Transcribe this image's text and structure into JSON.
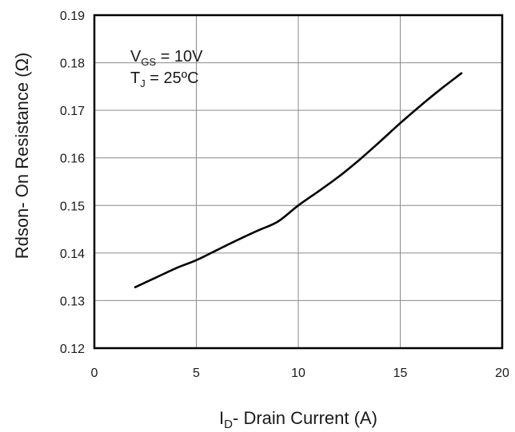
{
  "chart_data": {
    "type": "line",
    "xlabel_main": "I",
    "xlabel_sub": "D",
    "xlabel_rest": "- Drain Current (A)",
    "ylabel": "Rdson- On Resistance (Ω)",
    "xlim": [
      0,
      20
    ],
    "ylim": [
      0.12,
      0.19
    ],
    "x_ticks": [
      0,
      5,
      10,
      15,
      20
    ],
    "x_tick_labels": [
      "0",
      "5",
      "10",
      "15",
      "20"
    ],
    "y_ticks": [
      0.12,
      0.13,
      0.14,
      0.15,
      0.16,
      0.17,
      0.18,
      0.19
    ],
    "y_tick_labels": [
      "0.12",
      "0.13",
      "0.14",
      "0.15",
      "0.16",
      "0.17",
      "0.18",
      "0.19"
    ],
    "grid": true,
    "series": [
      {
        "x": [
          2,
          3,
          4,
          5,
          6,
          7,
          8,
          9,
          10,
          11,
          12,
          13,
          14,
          15,
          16,
          17,
          18
        ],
        "y": [
          0.1328,
          0.1348,
          0.1368,
          0.1385,
          0.1406,
          0.1427,
          0.1447,
          0.1466,
          0.15,
          0.153,
          0.1561,
          0.1596,
          0.1634,
          0.1673,
          0.171,
          0.1745,
          0.1778
        ]
      }
    ],
    "annotations": [
      {
        "main": "V",
        "sub": "GS",
        "rest": " = 10V"
      },
      {
        "main": "T",
        "sub": "J",
        "rest": " = 25ºC"
      }
    ],
    "color": "#000000"
  }
}
